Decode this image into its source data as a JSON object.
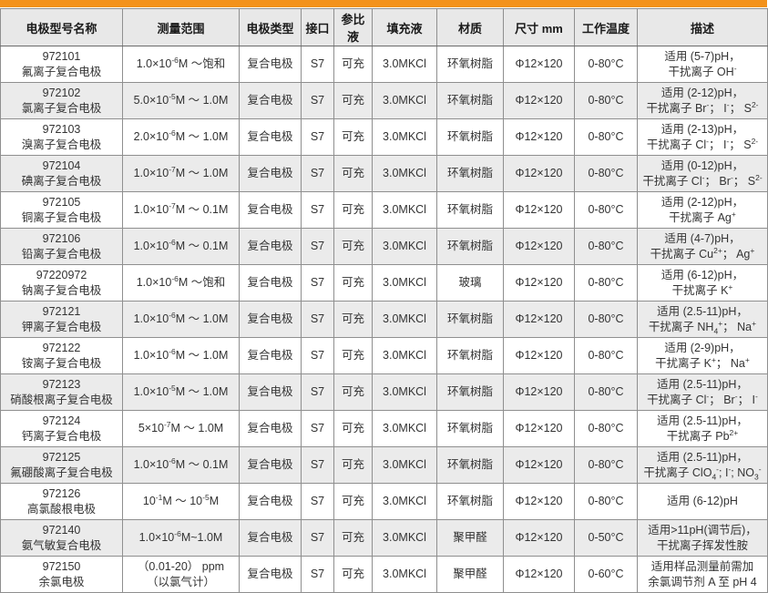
{
  "colors": {
    "accent_orange": "#f3921b",
    "header_bg": "#e8e8e8",
    "stripe_bg": "#ebebeb",
    "border": "#8f8f8f",
    "text": "#333333"
  },
  "table": {
    "headers": [
      "电极型号名称",
      "测量范围",
      "电极类型",
      "接口",
      "参比液",
      "填充液",
      "材质",
      "尺寸 mm",
      "工作温度",
      "描述"
    ],
    "rows": [
      {
        "model": "972101",
        "name": "氟离子复合电极",
        "range": "1.0×10^{-6}M ～饱和",
        "type": "复合电极",
        "interface": "S7",
        "ref_solution": "可充",
        "filling": "3.0MKCl",
        "material": "环氧树脂",
        "size": "Φ12×120",
        "temp": "0-80°C",
        "desc": "适用 (5-7)pH，\n干扰离子 OH^{-}"
      },
      {
        "model": "972102",
        "name": "氯离子复合电极",
        "range": "5.0×10^{-5}M ～ 1.0M",
        "type": "复合电极",
        "interface": "S7",
        "ref_solution": "可充",
        "filling": "3.0MKCl",
        "material": "环氧树脂",
        "size": "Φ12×120",
        "temp": "0-80°C",
        "desc": "适用 (2-12)pH，\n干扰离子 Br^{-}； I^{-}； S^{2-}"
      },
      {
        "model": "972103",
        "name": "溴离子复合电极",
        "range": "2.0×10^{-6}M ～ 1.0M",
        "type": "复合电极",
        "interface": "S7",
        "ref_solution": "可充",
        "filling": "3.0MKCl",
        "material": "环氧树脂",
        "size": "Φ12×120",
        "temp": "0-80°C",
        "desc": "适用 (2-13)pH，\n干扰离子 Cl^{-}； I^{-}； S^{2-}"
      },
      {
        "model": "972104",
        "name": "碘离子复合电极",
        "range": "1.0×10^{-7}M ～ 1.0M",
        "type": "复合电极",
        "interface": "S7",
        "ref_solution": "可充",
        "filling": "3.0MKCl",
        "material": "环氧树脂",
        "size": "Φ12×120",
        "temp": "0-80°C",
        "desc": "适用 (0-12)pH，\n干扰离子 Cl^{-}； Br^{-}； S^{2-}"
      },
      {
        "model": "972105",
        "name": "铜离子复合电极",
        "range": "1.0×10^{-7}M ～ 0.1M",
        "type": "复合电极",
        "interface": "S7",
        "ref_solution": "可充",
        "filling": "3.0MKCl",
        "material": "环氧树脂",
        "size": "Φ12×120",
        "temp": "0-80°C",
        "desc": "适用 (2-12)pH，\n干扰离子 Ag^{+}"
      },
      {
        "model": "972106",
        "name": "铅离子复合电极",
        "range": "1.0×10^{-6}M ～ 0.1M",
        "type": "复合电极",
        "interface": "S7",
        "ref_solution": "可充",
        "filling": "3.0MKCl",
        "material": "环氧树脂",
        "size": "Φ12×120",
        "temp": "0-80°C",
        "desc": "适用 (4-7)pH，\n干扰离子 Cu^{2+}； Ag^{+}"
      },
      {
        "model": "97220972",
        "name": "钠离子复合电极",
        "range": "1.0×10^{-6}M ～饱和",
        "type": "复合电极",
        "interface": "S7",
        "ref_solution": "可充",
        "filling": "3.0MKCl",
        "material": "玻璃",
        "size": "Φ12×120",
        "temp": "0-80°C",
        "desc": "适用 (6-12)pH，\n干扰离子 K^{+}"
      },
      {
        "model": "972121",
        "name": "钾离子复合电极",
        "range": "1.0×10^{-6}M ～ 1.0M",
        "type": "复合电极",
        "interface": "S7",
        "ref_solution": "可充",
        "filling": "3.0MKCl",
        "material": "环氧树脂",
        "size": "Φ12×120",
        "temp": "0-80°C",
        "desc": "适用 (2.5-11)pH，\n干扰离子 NH_{4}^{+}； Na^{+}"
      },
      {
        "model": "972122",
        "name": "铵离子复合电极",
        "range": "1.0×10^{-6}M ～ 1.0M",
        "type": "复合电极",
        "interface": "S7",
        "ref_solution": "可充",
        "filling": "3.0MKCl",
        "material": "环氧树脂",
        "size": "Φ12×120",
        "temp": "0-80°C",
        "desc": "适用 (2-9)pH，\n干扰离子 K^{+}； Na^{+}"
      },
      {
        "model": "972123",
        "name": "硝酸根离子复合电极",
        "range": "1.0×10^{-5}M ～ 1.0M",
        "type": "复合电极",
        "interface": "S7",
        "ref_solution": "可充",
        "filling": "3.0MKCl",
        "material": "环氧树脂",
        "size": "Φ12×120",
        "temp": "0-80°C",
        "desc": "适用 (2.5-11)pH，\n干扰离子 Cl^{-}； Br^{-}； I^{-}"
      },
      {
        "model": "972124",
        "name": "钙离子复合电极",
        "range": "5×10^{-7}M ～ 1.0M",
        "type": "复合电极",
        "interface": "S7",
        "ref_solution": "可充",
        "filling": "3.0MKCl",
        "material": "环氧树脂",
        "size": "Φ12×120",
        "temp": "0-80°C",
        "desc": "适用 (2.5-11)pH，\n干扰离子 Pb^{2+}"
      },
      {
        "model": "972125",
        "name": "氟硼酸离子复合电极",
        "range": "1.0×10^{-6}M ～ 0.1M",
        "type": "复合电极",
        "interface": "S7",
        "ref_solution": "可充",
        "filling": "3.0MKCl",
        "material": "环氧树脂",
        "size": "Φ12×120",
        "temp": "0-80°C",
        "desc": "适用 (2.5-11)pH，\n干扰离子 ClO_{4}^{-}; I^{-}; NO_{3}^{-}"
      },
      {
        "model": "972126",
        "name": "高氯酸根电极",
        "range": "10^{-1}M ～ 10^{-5}M",
        "type": "复合电极",
        "interface": "S7",
        "ref_solution": "可充",
        "filling": "3.0MKCl",
        "material": "环氧树脂",
        "size": "Φ12×120",
        "temp": "0-80°C",
        "desc": "适用 (6-12)pH"
      },
      {
        "model": "972140",
        "name": "氨气敏复合电极",
        "range": "1.0×10^{-6}M~1.0M",
        "type": "复合电极",
        "interface": "S7",
        "ref_solution": "可充",
        "filling": "3.0MKCl",
        "material": "聚甲醛",
        "size": "Φ12×120",
        "temp": "0-50°C",
        "desc": "适用>11pH(调节后)，\n干扰离子挥发性胺"
      },
      {
        "model": "972150",
        "name": "余氯电极",
        "range": "（0.01-20） ppm\n（以氯气计）",
        "type": "复合电极",
        "interface": "S7",
        "ref_solution": "可充",
        "filling": "3.0MKCl",
        "material": "聚甲醛",
        "size": "Φ12×120",
        "temp": "0-60°C",
        "desc": "适用样品测量前需加\n余氯调节剂 A 至 pH 4"
      }
    ]
  }
}
